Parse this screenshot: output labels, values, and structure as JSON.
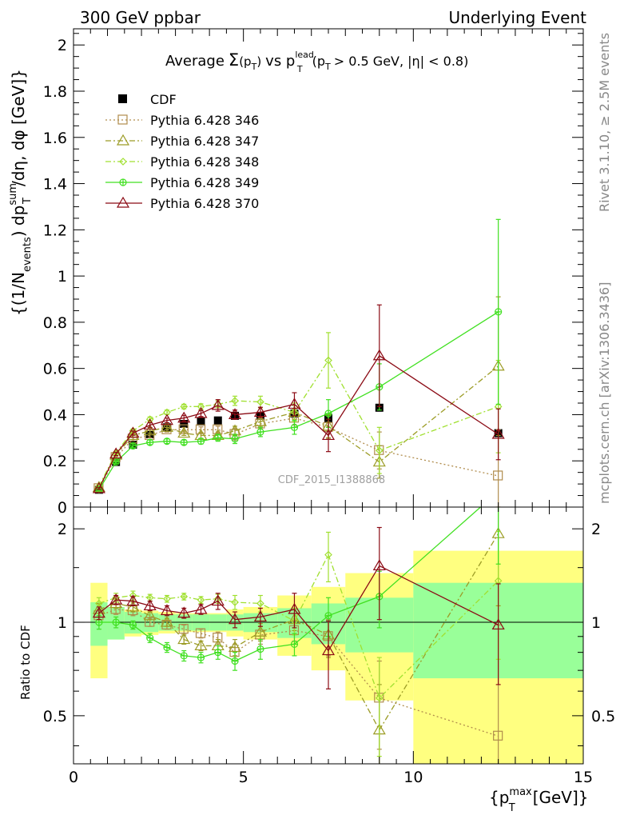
{
  "header": {
    "left": "300 GeV ppbar",
    "right": "Underlying Event"
  },
  "plot_title": {
    "main": "Average",
    "sigma": "Σ",
    "pt": "(p",
    "pt_sub": "T",
    "pt_close": ")",
    "vs": "vs p",
    "lead_sup": "lead",
    "lead_sub": "T",
    "cut": "(p",
    "cut_sub": "T",
    "cut_rest": "> 0.5 GeV, |η| < 0.8)"
  },
  "side_labels": {
    "rivet": "Rivet 3.1.10, ≥ 2.5M events",
    "mcplots": "mcplots.cern.ch [arXiv:1306.3436]"
  },
  "watermark": "CDF_2015_I1388868",
  "axes": {
    "main_ylabel": "{(1/N_events) dp_T^sum/dη, dφ [GeV]}",
    "main_ylabel_parts": {
      "a": "{(1/N",
      "a_sub": "events",
      "b": ") dp",
      "b_sup": "sum",
      "b_sub": "T",
      "c": "/dη, dφ [GeV]}"
    },
    "ratio_ylabel": "Ratio to CDF",
    "xlabel_parts": {
      "a": "{p",
      "a_sup": "max",
      "a_sub": "T",
      "b": "[GeV]}"
    },
    "xlabel": "{p_T^max [GeV]}",
    "main_yticks": [
      "0",
      "0.2",
      "0.4",
      "0.6",
      "0.8",
      "1",
      "1.2",
      "1.4",
      "1.6",
      "1.8",
      "2"
    ],
    "xticks": [
      "0",
      "5",
      "10",
      "15"
    ],
    "ratio_yticks_left": [
      "0.5",
      "1",
      "2"
    ],
    "ratio_yticks_right": [
      "0.5",
      "1",
      "2"
    ]
  },
  "chart_data": {
    "type": "scatter",
    "xlim": [
      0,
      15
    ],
    "main_ylim": [
      0,
      2.07
    ],
    "ratio_ylim": [
      0.35,
      2.35
    ],
    "ratio_scale": "log",
    "legend_position": "top-left",
    "data": {
      "name": "CDF",
      "color": "#000000",
      "x": [
        0.75,
        1.25,
        1.75,
        2.25,
        2.75,
        3.25,
        3.75,
        4.25,
        4.75,
        5.5,
        6.5,
        7.5,
        9.0,
        12.5
      ],
      "y": [
        0.075,
        0.195,
        0.27,
        0.315,
        0.345,
        0.36,
        0.37,
        0.375,
        0.395,
        0.395,
        0.405,
        0.385,
        0.43,
        0.32
      ],
      "err": [
        0.004,
        0.008,
        0.01,
        0.012,
        0.013,
        0.014,
        0.015,
        0.015,
        0.017,
        0.018,
        0.02,
        0.035,
        0.045,
        0.05
      ],
      "ratio_band_inner": [
        0.16,
        0.12,
        0.08,
        0.07,
        0.06,
        0.06,
        0.06,
        0.06,
        0.06,
        0.07,
        0.11,
        0.15,
        0.2,
        0.34
      ],
      "ratio_band_outer": [
        0.34,
        0.12,
        0.1,
        0.09,
        0.08,
        0.07,
        0.07,
        0.07,
        0.1,
        0.12,
        0.22,
        0.3,
        0.44,
        0.7
      ]
    },
    "bin_edges": [
      0.5,
      1.0,
      1.5,
      2.0,
      2.5,
      3.0,
      3.5,
      4.0,
      4.5,
      5.0,
      6.0,
      7.0,
      8.0,
      10.0,
      15.0
    ],
    "series": [
      {
        "name": "Pythia 6.428 346",
        "color": "#b08c4c",
        "dash": "2,3",
        "marker": "square",
        "y": [
          0.08,
          0.215,
          0.295,
          0.31,
          0.335,
          0.335,
          0.335,
          0.335,
          0.315,
          0.36,
          0.385,
          0.345,
          0.245,
          0.135
        ],
        "err": [
          0.004,
          0.006,
          0.008,
          0.01,
          0.01,
          0.01,
          0.012,
          0.015,
          0.025,
          0.022,
          0.03,
          0.05,
          0.08,
          0.2
        ],
        "ratio": [
          1.05,
          1.1,
          1.09,
          1.0,
          0.98,
          0.95,
          0.92,
          0.89,
          0.8,
          0.91,
          0.94,
          0.9,
          0.57,
          0.43
        ],
        "ratio_err": [
          0.05,
          0.04,
          0.04,
          0.03,
          0.03,
          0.03,
          0.03,
          0.04,
          0.05,
          0.06,
          0.07,
          0.12,
          0.18,
          0.55
        ]
      },
      {
        "name": "Pythia 6.428 347",
        "color": "#9c9c26",
        "dash": "7,3,2,3",
        "marker": "triangle",
        "y": [
          0.085,
          0.225,
          0.31,
          0.33,
          0.345,
          0.32,
          0.31,
          0.31,
          0.33,
          0.37,
          0.41,
          0.35,
          0.195,
          0.61
        ],
        "err": [
          0.004,
          0.006,
          0.008,
          0.01,
          0.01,
          0.01,
          0.012,
          0.015,
          0.02,
          0.02,
          0.03,
          0.05,
          0.07,
          0.3
        ],
        "ratio": [
          1.1,
          1.15,
          1.12,
          1.05,
          1.0,
          0.88,
          0.84,
          0.84,
          0.83,
          0.93,
          1.02,
          0.91,
          0.45,
          1.93
        ],
        "ratio_err": [
          0.05,
          0.04,
          0.04,
          0.03,
          0.03,
          0.03,
          0.03,
          0.04,
          0.05,
          0.06,
          0.08,
          0.14,
          0.18,
          0.8
        ]
      },
      {
        "name": "Pythia 6.428 348",
        "color": "#a0e030",
        "dash": "7,3,2,3",
        "marker": "diamond",
        "y": [
          0.09,
          0.235,
          0.33,
          0.38,
          0.41,
          0.435,
          0.435,
          0.445,
          0.46,
          0.455,
          0.41,
          0.635,
          0.245,
          0.435
        ],
        "err": [
          0.004,
          0.006,
          0.008,
          0.01,
          0.01,
          0.01,
          0.012,
          0.015,
          0.02,
          0.025,
          0.04,
          0.12,
          0.1,
          0.2
        ],
        "ratio": [
          1.15,
          1.2,
          1.22,
          1.2,
          1.19,
          1.21,
          1.18,
          1.19,
          1.16,
          1.15,
          1.01,
          1.65,
          0.57,
          1.36
        ],
        "ratio_err": [
          0.05,
          0.04,
          0.04,
          0.03,
          0.03,
          0.03,
          0.03,
          0.04,
          0.06,
          0.07,
          0.1,
          0.3,
          0.2,
          0.6
        ]
      },
      {
        "name": "Pythia 6.428 349",
        "color": "#40e020",
        "dash": "",
        "marker": "circle",
        "y": [
          0.075,
          0.195,
          0.265,
          0.28,
          0.285,
          0.28,
          0.285,
          0.3,
          0.295,
          0.325,
          0.345,
          0.405,
          0.52,
          0.845
        ],
        "err": [
          0.004,
          0.006,
          0.008,
          0.01,
          0.01,
          0.01,
          0.012,
          0.015,
          0.02,
          0.02,
          0.03,
          0.06,
          0.1,
          0.4
        ],
        "ratio": [
          1.0,
          1.0,
          0.98,
          0.89,
          0.83,
          0.78,
          0.77,
          0.8,
          0.75,
          0.82,
          0.85,
          1.05,
          1.21,
          2.64
        ],
        "ratio_err": [
          0.05,
          0.04,
          0.03,
          0.03,
          0.03,
          0.03,
          0.03,
          0.04,
          0.05,
          0.06,
          0.07,
          0.15,
          0.25,
          1.1
        ]
      },
      {
        "name": "Pythia 6.428 370",
        "color": "#8b0a14",
        "dash": "",
        "marker": "triangle",
        "y": [
          0.08,
          0.23,
          0.32,
          0.355,
          0.375,
          0.385,
          0.405,
          0.44,
          0.4,
          0.41,
          0.445,
          0.31,
          0.655,
          0.315
        ],
        "err": [
          0.004,
          0.007,
          0.009,
          0.01,
          0.01,
          0.012,
          0.013,
          0.025,
          0.02,
          0.022,
          0.05,
          0.07,
          0.22,
          0.11
        ],
        "ratio": [
          1.07,
          1.18,
          1.17,
          1.13,
          1.09,
          1.07,
          1.1,
          1.17,
          1.02,
          1.04,
          1.1,
          0.81,
          1.52,
          0.98
        ],
        "ratio_err": [
          0.05,
          0.04,
          0.04,
          0.04,
          0.04,
          0.04,
          0.04,
          0.07,
          0.06,
          0.07,
          0.14,
          0.2,
          0.5,
          0.35
        ]
      }
    ]
  }
}
